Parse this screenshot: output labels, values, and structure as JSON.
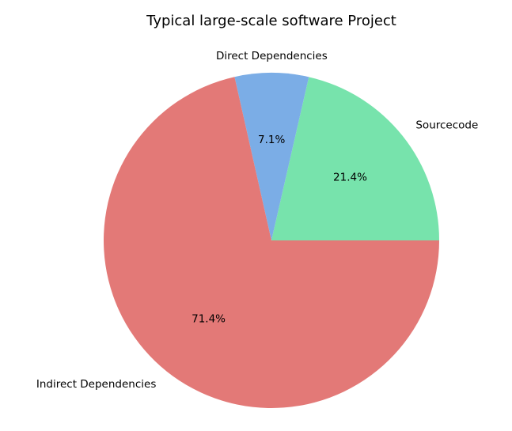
{
  "chart_data": {
    "type": "pie",
    "title": "Typical large-scale software Project",
    "slices": [
      {
        "label": "Sourcecode",
        "value": 21.4,
        "percent_label": "21.4%",
        "color": "#77e3ac"
      },
      {
        "label": "Direct Dependencies",
        "value": 7.1,
        "percent_label": "7.1%",
        "color": "#7bade6"
      },
      {
        "label": "Indirect Dependencies",
        "value": 71.4,
        "percent_label": "71.4%",
        "color": "#e37977"
      }
    ],
    "start_angle_deg": 0,
    "direction": "counterclockwise",
    "legend": "none"
  }
}
